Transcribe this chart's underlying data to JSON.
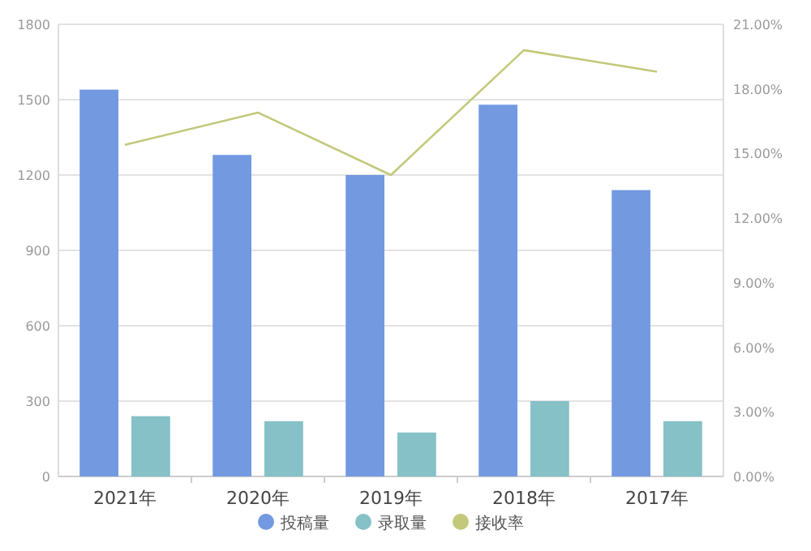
{
  "chart_data": {
    "type": "bar",
    "categories": [
      "2021年",
      "2020年",
      "2019年",
      "2018年",
      "2017年"
    ],
    "series": [
      {
        "name": "投稿量",
        "color": "#7399e0",
        "values": [
          1540,
          1280,
          1200,
          1480,
          1140
        ]
      },
      {
        "name": "录取量",
        "color": "#85c1c6",
        "values": [
          240,
          220,
          175,
          300,
          220
        ]
      },
      {
        "name": "接收率",
        "color": "#c3c87a",
        "type": "line",
        "axis": "y2",
        "values": [
          15.4,
          16.9,
          14.0,
          19.8,
          18.8
        ]
      }
    ],
    "ylim": [
      0,
      1800
    ],
    "yticks": [
      0,
      300,
      600,
      900,
      1200,
      1500,
      1800
    ],
    "y2lim": [
      0,
      21
    ],
    "y2ticks": [
      {
        "value": 0,
        "label": "0.00%"
      },
      {
        "value": 3,
        "label": "3.00%"
      },
      {
        "value": 6,
        "label": "6.00%"
      },
      {
        "value": 9,
        "label": "9.00%"
      },
      {
        "value": 12,
        "label": "12.00%"
      },
      {
        "value": 15,
        "label": "15.00%"
      },
      {
        "value": 18,
        "label": "18.00%"
      },
      {
        "value": 21,
        "label": "21.00%"
      }
    ],
    "grid": "y",
    "legend": "bottom"
  }
}
